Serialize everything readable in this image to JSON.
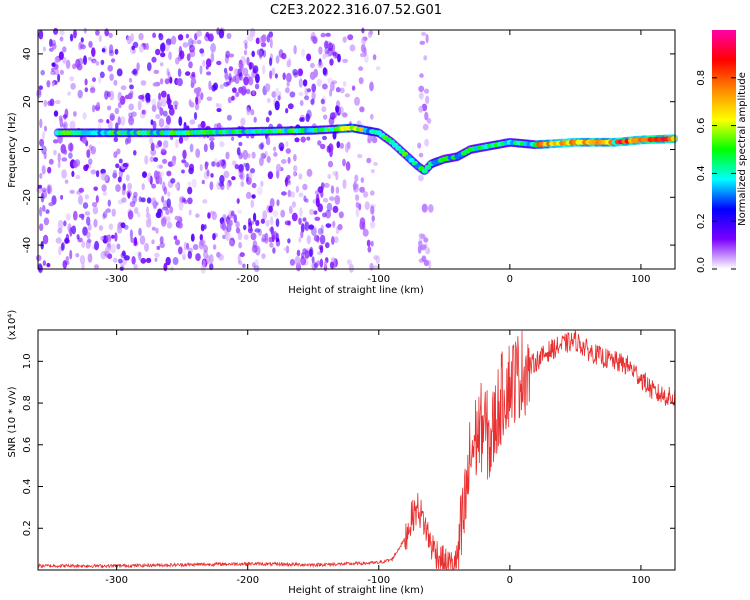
{
  "title": "C2E3.2022.316.07.52.G01",
  "colors": {
    "snr_line": "#e83030",
    "spectrogram_low": "#7a00ff",
    "frame": "#000000"
  },
  "chart_data": [
    {
      "type": "heatmap",
      "name": "spectrogram",
      "xlabel": "Height of straight line (km)",
      "ylabel": "Frequency (Hz)",
      "xlim": [
        -360,
        126
      ],
      "ylim": [
        -50,
        50
      ],
      "x_ticks": [
        -300,
        -200,
        -100,
        0,
        100
      ],
      "y_ticks": [
        -40,
        -20,
        0,
        20,
        40
      ],
      "x_tick_labels": [
        "-300",
        "-200",
        "-100",
        "0",
        "100"
      ],
      "y_tick_labels": [
        "-40",
        "-20",
        "0",
        "20",
        "40"
      ],
      "colorbar": {
        "label": "Normalized spectral amplitude",
        "range": [
          0,
          1
        ],
        "ticks": [
          0.0,
          0.2,
          0.4,
          0.6,
          0.8
        ],
        "tick_labels": [
          "0.0",
          "0.2",
          "0.4",
          "0.6",
          "0.8"
        ],
        "colormap": [
          "#ffffff",
          "#7a00ff",
          "#0000ff",
          "#00ffff",
          "#00ff00",
          "#ffff00",
          "#ff8800",
          "#ff0000",
          "#ff00aa"
        ]
      },
      "signal_trace": {
        "x": [
          -345,
          -300,
          -250,
          -200,
          -150,
          -120,
          -100,
          -90,
          -80,
          -70,
          -65,
          -60,
          -50,
          -40,
          -30,
          -20,
          -10,
          0,
          20,
          50,
          80,
          100,
          126
        ],
        "y": [
          7,
          7,
          7,
          7.5,
          8,
          9,
          7,
          3,
          -2,
          -7,
          -9,
          -6,
          -4,
          -3,
          0,
          1,
          2,
          3,
          2,
          3,
          3,
          4,
          4.5
        ]
      }
    },
    {
      "type": "line",
      "name": "snr",
      "xlabel": "Height of straight line (km)",
      "ylabel": "SNR (10 * v/v)",
      "y_scale_label": "(x10⁴)",
      "xlim": [
        -360,
        126
      ],
      "ylim": [
        0,
        1.15
      ],
      "x_ticks": [
        -300,
        -200,
        -100,
        0,
        100
      ],
      "y_ticks": [
        0.2,
        0.4,
        0.6,
        0.8,
        1.0
      ],
      "x_tick_labels": [
        "-300",
        "-200",
        "-100",
        "0",
        "100"
      ],
      "y_tick_labels": [
        "0.2",
        "0.4",
        "0.6",
        "0.8",
        "1.0"
      ],
      "x": [
        -360,
        -300,
        -250,
        -200,
        -150,
        -120,
        -100,
        -90,
        -80,
        -75,
        -70,
        -65,
        -60,
        -50,
        -45,
        -40,
        -35,
        -30,
        -25,
        -20,
        -15,
        -10,
        -5,
        0,
        10,
        20,
        30,
        40,
        50,
        60,
        70,
        80,
        90,
        100,
        110,
        126
      ],
      "y": [
        0.02,
        0.02,
        0.025,
        0.03,
        0.025,
        0.03,
        0.035,
        0.05,
        0.15,
        0.25,
        0.3,
        0.22,
        0.12,
        0.03,
        0.02,
        0.05,
        0.25,
        0.55,
        0.65,
        0.7,
        0.6,
        0.75,
        0.85,
        0.9,
        0.95,
        1.0,
        1.05,
        1.08,
        1.1,
        1.05,
        1.02,
        1.0,
        0.98,
        0.92,
        0.85,
        0.82
      ]
    }
  ]
}
